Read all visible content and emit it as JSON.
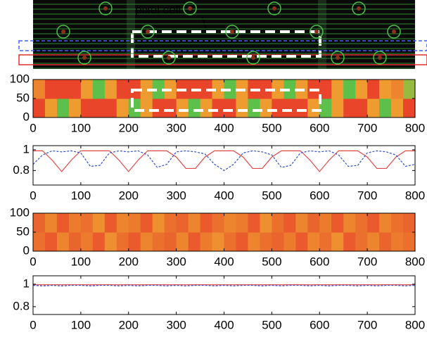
{
  "annotation": "pixel cell",
  "chart_data": [
    {
      "type": "heatmap",
      "xlim": [
        0,
        800
      ],
      "ylim": [
        0,
        100
      ],
      "xticks": [
        0,
        100,
        200,
        300,
        400,
        500,
        600,
        700,
        800
      ],
      "yticks": [
        0,
        50,
        100
      ],
      "colorscale": [
        "#e8452b",
        "#f0b030",
        "#5cc04a"
      ],
      "z": [
        [
          0,
          0.4,
          1,
          0.4,
          0,
          0,
          0,
          0.4,
          1,
          0.4,
          0,
          0,
          0.4,
          1,
          0.4,
          0,
          0,
          0.4,
          1,
          0.4,
          0,
          0,
          0,
          0.4,
          1,
          0.4,
          0,
          0,
          0.4,
          1,
          0.4,
          0
        ],
        [
          0.3,
          0,
          0,
          0,
          0.4,
          1,
          0.4,
          0,
          0,
          0.4,
          1,
          0.4,
          0,
          0,
          0,
          0.4,
          1,
          0.4,
          0,
          0,
          0.4,
          1,
          0.4,
          0,
          0,
          0.4,
          1,
          0.4,
          0,
          0.4,
          0.3,
          0.8
        ]
      ]
    },
    {
      "type": "line",
      "xlim": [
        0,
        800
      ],
      "ylim": [
        0.66,
        1.04
      ],
      "xticks": [
        0,
        100,
        200,
        300,
        400,
        500,
        600,
        700,
        800
      ],
      "yticks": [
        0.8,
        1
      ],
      "x": [
        0,
        20,
        40,
        60,
        80,
        100,
        120,
        140,
        160,
        180,
        200,
        220,
        240,
        260,
        280,
        300,
        320,
        340,
        360,
        380,
        400,
        420,
        440,
        460,
        480,
        500,
        520,
        540,
        560,
        580,
        600,
        620,
        640,
        660,
        680,
        700,
        720,
        740,
        760,
        780,
        800
      ],
      "series": [
        {
          "color": "#e04848",
          "dash": false,
          "values": [
            0.99,
            0.99,
            0.9,
            0.79,
            0.9,
            0.99,
            0.99,
            0.99,
            0.99,
            0.9,
            0.79,
            0.9,
            0.99,
            0.99,
            0.99,
            0.93,
            0.82,
            0.82,
            0.93,
            0.99,
            0.99,
            0.99,
            0.93,
            0.82,
            0.82,
            0.93,
            0.99,
            0.99,
            0.99,
            0.9,
            0.79,
            0.9,
            0.99,
            0.99,
            0.99,
            0.93,
            0.82,
            0.82,
            0.93,
            0.99,
            0.99
          ]
        },
        {
          "color": "#3050d0",
          "dash": true,
          "values": [
            0.86,
            0.95,
            0.99,
            0.98,
            0.99,
            0.97,
            0.84,
            0.85,
            0.97,
            0.99,
            0.98,
            0.99,
            0.95,
            0.83,
            0.86,
            0.98,
            0.99,
            0.98,
            0.96,
            0.86,
            0.8,
            0.86,
            0.97,
            0.99,
            0.98,
            0.95,
            0.83,
            0.85,
            0.97,
            0.99,
            0.98,
            0.99,
            0.95,
            0.84,
            0.85,
            0.97,
            0.99,
            0.98,
            0.95,
            0.84,
            0.86
          ]
        }
      ]
    },
    {
      "type": "heatmap",
      "xlim": [
        0,
        800
      ],
      "ylim": [
        0,
        100
      ],
      "xticks": [
        0,
        100,
        200,
        300,
        400,
        500,
        600,
        700,
        800
      ],
      "yticks": [
        0,
        50,
        100
      ],
      "colorscale": [
        "#e8452b",
        "#f0b030",
        "#5cc04a"
      ],
      "z": [
        [
          0.2,
          0.1,
          0.3,
          0.15,
          0.25,
          0.1,
          0.35,
          0.2,
          0.1,
          0.3,
          0.2,
          0.15,
          0.3,
          0.1,
          0.25,
          0.35,
          0.2,
          0.1,
          0.3,
          0.2,
          0.15,
          0.25,
          0.1,
          0.3,
          0.2,
          0.35,
          0.1,
          0.2,
          0.3,
          0.15,
          0.25,
          0.2
        ],
        [
          0.15,
          0.3,
          0.1,
          0.25,
          0.2,
          0.35,
          0.1,
          0.3,
          0.25,
          0.1,
          0.35,
          0.2,
          0.15,
          0.3,
          0.1,
          0.2,
          0.3,
          0.25,
          0.1,
          0.35,
          0.2,
          0.1,
          0.3,
          0.15,
          0.25,
          0.1,
          0.3,
          0.2,
          0.1,
          0.3,
          0.2,
          0.15
        ]
      ]
    },
    {
      "type": "line",
      "xlim": [
        0,
        800
      ],
      "ylim": [
        0.73,
        1.075
      ],
      "xticks": [
        0,
        100,
        200,
        300,
        400,
        500,
        600,
        700,
        800
      ],
      "yticks": [
        0.8,
        1
      ],
      "x": [
        0,
        20,
        40,
        60,
        80,
        100,
        120,
        140,
        160,
        180,
        200,
        220,
        240,
        260,
        280,
        300,
        320,
        340,
        360,
        380,
        400,
        420,
        440,
        460,
        480,
        500,
        520,
        540,
        560,
        580,
        600,
        620,
        640,
        660,
        680,
        700,
        720,
        740,
        760,
        780,
        800
      ],
      "series": [
        {
          "color": "#e04848",
          "dash": false,
          "values": [
            0.995,
            0.995,
            0.995,
            0.995,
            0.995,
            0.995,
            0.995,
            0.995,
            0.995,
            0.995,
            0.995,
            0.995,
            0.995,
            0.995,
            0.995,
            0.995,
            0.995,
            0.995,
            0.995,
            0.995,
            0.995,
            0.995,
            0.995,
            0.995,
            0.995,
            0.995,
            0.995,
            0.995,
            0.995,
            0.995,
            0.995,
            0.995,
            0.995,
            0.995,
            0.995,
            0.995,
            0.995,
            0.995,
            0.995,
            0.995,
            0.995
          ]
        },
        {
          "color": "#3050d0",
          "dash": true,
          "values": [
            0.99,
            0.985,
            0.99,
            0.985,
            0.99,
            0.99,
            0.985,
            0.99,
            0.99,
            0.985,
            0.99,
            0.985,
            0.99,
            0.99,
            0.985,
            0.99,
            0.985,
            0.99,
            0.99,
            0.985,
            0.99,
            0.985,
            0.99,
            0.99,
            0.985,
            0.99,
            0.985,
            0.99,
            0.99,
            0.985,
            0.99,
            0.985,
            0.99,
            0.99,
            0.985,
            0.99,
            0.985,
            0.99,
            0.99,
            0.985,
            0.99
          ]
        }
      ]
    }
  ]
}
